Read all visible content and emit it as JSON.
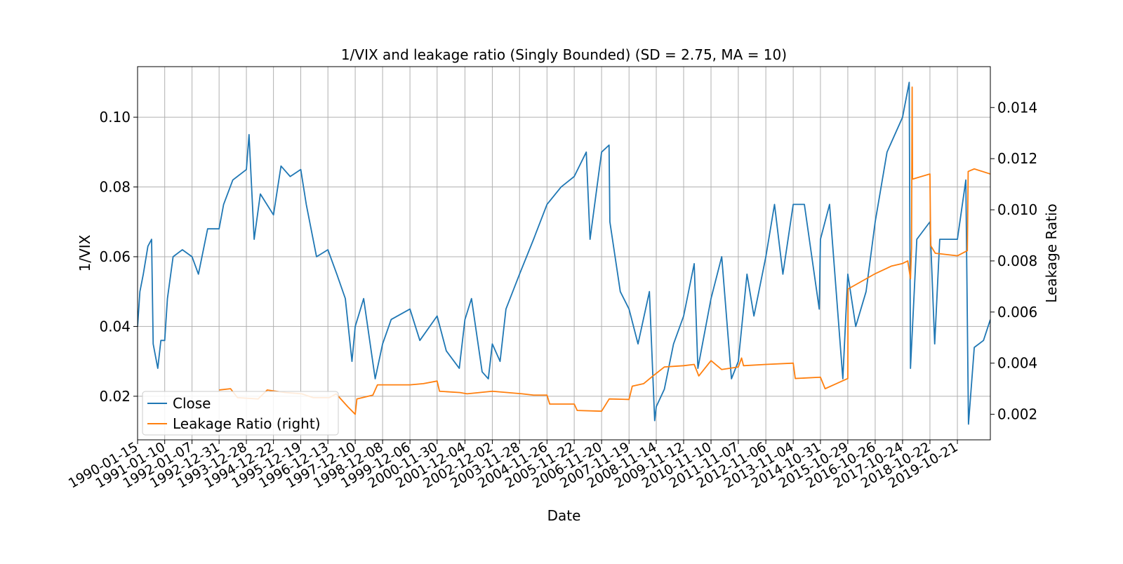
{
  "chart_data": {
    "type": "line",
    "title": "1/VIX and leakage ratio (Singly Bounded) (SD = 2.75, MA = 10)",
    "xlabel": "Date",
    "ylabel": "1/VIX",
    "ylabel_right": "Leakage Ratio",
    "grid": true,
    "legend_position": "lower-left",
    "xlim": [
      "1990-01-15",
      "2020-12-31"
    ],
    "ylim": [
      0.0075,
      0.1145
    ],
    "ylim_right": [
      0.001,
      0.0156
    ],
    "x_ticks": [
      "1990-01-15",
      "1991-01-10",
      "1992-01-07",
      "1992-12-31",
      "1993-12-28",
      "1994-12-22",
      "1995-12-19",
      "1996-12-13",
      "1997-12-10",
      "1998-12-08",
      "1999-12-06",
      "2000-11-30",
      "2001-12-04",
      "2002-12-02",
      "2003-11-28",
      "2004-11-26",
      "2005-11-22",
      "2006-11-20",
      "2007-11-19",
      "2008-11-14",
      "2009-11-12",
      "2010-11-10",
      "2011-11-07",
      "2012-11-06",
      "2013-11-04",
      "2014-10-31",
      "2015-10-29",
      "2016-10-26",
      "2017-10-24",
      "2018-10-22",
      "2019-10-21"
    ],
    "y_ticks": [
      "0.02",
      "0.04",
      "0.06",
      "0.08",
      "0.10"
    ],
    "y_ticks_right": [
      "0.002",
      "0.004",
      "0.006",
      "0.008",
      "0.010",
      "0.012",
      "0.014"
    ],
    "colors": {
      "close": "#1f77b4",
      "leakage": "#ff7f0e",
      "grid": "#b0b0b0"
    },
    "series": [
      {
        "name": "Close",
        "axis": "left",
        "points": [
          [
            "1990-01-15",
            0.04
          ],
          [
            "1990-02-15",
            0.05
          ],
          [
            "1990-04-01",
            0.055
          ],
          [
            "1990-06-01",
            0.063
          ],
          [
            "1990-07-20",
            0.065
          ],
          [
            "1990-08-10",
            0.035
          ],
          [
            "1990-10-10",
            0.028
          ],
          [
            "1990-11-20",
            0.036
          ],
          [
            "1991-01-10",
            0.036
          ],
          [
            "1991-02-15",
            0.048
          ],
          [
            "1991-05-01",
            0.06
          ],
          [
            "1991-09-01",
            0.062
          ],
          [
            "1992-01-07",
            0.06
          ],
          [
            "1992-04-01",
            0.055
          ],
          [
            "1992-08-01",
            0.068
          ],
          [
            "1992-12-31",
            0.068
          ],
          [
            "1993-03-01",
            0.075
          ],
          [
            "1993-07-01",
            0.082
          ],
          [
            "1993-12-28",
            0.085
          ],
          [
            "1994-02-01",
            0.095
          ],
          [
            "1994-04-10",
            0.065
          ],
          [
            "1994-07-01",
            0.078
          ],
          [
            "1994-12-22",
            0.072
          ],
          [
            "1995-04-01",
            0.086
          ],
          [
            "1995-08-01",
            0.083
          ],
          [
            "1995-12-19",
            0.085
          ],
          [
            "1996-03-01",
            0.075
          ],
          [
            "1996-07-15",
            0.06
          ],
          [
            "1996-12-13",
            0.062
          ],
          [
            "1997-04-10",
            0.055
          ],
          [
            "1997-08-01",
            0.048
          ],
          [
            "1997-10-28",
            0.03
          ],
          [
            "1997-12-10",
            0.04
          ],
          [
            "1998-04-01",
            0.048
          ],
          [
            "1998-09-01",
            0.025
          ],
          [
            "1998-12-08",
            0.035
          ],
          [
            "1999-04-01",
            0.042
          ],
          [
            "1999-12-06",
            0.045
          ],
          [
            "2000-04-15",
            0.036
          ],
          [
            "2000-11-30",
            0.043
          ],
          [
            "2001-04-01",
            0.033
          ],
          [
            "2001-09-20",
            0.028
          ],
          [
            "2001-12-04",
            0.042
          ],
          [
            "2002-03-01",
            0.048
          ],
          [
            "2002-07-20",
            0.027
          ],
          [
            "2002-10-10",
            0.025
          ],
          [
            "2002-12-02",
            0.035
          ],
          [
            "2003-03-15",
            0.03
          ],
          [
            "2003-06-01",
            0.045
          ],
          [
            "2003-11-28",
            0.055
          ],
          [
            "2004-06-01",
            0.065
          ],
          [
            "2004-11-26",
            0.075
          ],
          [
            "2005-06-01",
            0.08
          ],
          [
            "2005-11-22",
            0.083
          ],
          [
            "2006-05-01",
            0.09
          ],
          [
            "2006-06-20",
            0.065
          ],
          [
            "2006-11-20",
            0.09
          ],
          [
            "2007-02-27",
            0.092
          ],
          [
            "2007-03-10",
            0.07
          ],
          [
            "2007-07-26",
            0.05
          ],
          [
            "2007-11-19",
            0.045
          ],
          [
            "2008-03-17",
            0.035
          ],
          [
            "2008-08-15",
            0.05
          ],
          [
            "2008-10-24",
            0.013
          ],
          [
            "2008-11-14",
            0.017
          ],
          [
            "2009-03-01",
            0.022
          ],
          [
            "2009-07-01",
            0.035
          ],
          [
            "2009-11-12",
            0.043
          ],
          [
            "2010-04-01",
            0.058
          ],
          [
            "2010-05-20",
            0.028
          ],
          [
            "2010-11-10",
            0.048
          ],
          [
            "2011-04-01",
            0.06
          ],
          [
            "2011-08-08",
            0.025
          ],
          [
            "2011-11-07",
            0.03
          ],
          [
            "2012-03-01",
            0.055
          ],
          [
            "2012-06-01",
            0.043
          ],
          [
            "2012-11-06",
            0.06
          ],
          [
            "2013-03-01",
            0.075
          ],
          [
            "2013-06-20",
            0.055
          ],
          [
            "2013-11-04",
            0.075
          ],
          [
            "2014-04-01",
            0.075
          ],
          [
            "2014-10-15",
            0.045
          ],
          [
            "2014-10-31",
            0.065
          ],
          [
            "2015-03-01",
            0.075
          ],
          [
            "2015-08-24",
            0.025
          ],
          [
            "2015-10-29",
            0.055
          ],
          [
            "2016-02-11",
            0.04
          ],
          [
            "2016-06-27",
            0.05
          ],
          [
            "2016-10-26",
            0.07
          ],
          [
            "2017-04-01",
            0.09
          ],
          [
            "2017-10-24",
            0.1
          ],
          [
            "2018-01-20",
            0.11
          ],
          [
            "2018-02-06",
            0.028
          ],
          [
            "2018-05-01",
            0.065
          ],
          [
            "2018-10-22",
            0.07
          ],
          [
            "2018-12-24",
            0.035
          ],
          [
            "2019-03-01",
            0.065
          ],
          [
            "2019-10-21",
            0.065
          ],
          [
            "2020-02-10",
            0.082
          ],
          [
            "2020-03-16",
            0.012
          ],
          [
            "2020-06-01",
            0.034
          ],
          [
            "2020-10-01",
            0.036
          ],
          [
            "2020-12-31",
            0.042
          ]
        ]
      },
      {
        "name": "Leakage Ratio (right)",
        "axis": "right",
        "points": [
          [
            "1993-01-01",
            0.00295
          ],
          [
            "1993-06-01",
            0.003
          ],
          [
            "1993-09-01",
            0.00265
          ],
          [
            "1994-06-01",
            0.0026
          ],
          [
            "1994-10-01",
            0.00295
          ],
          [
            "1995-06-01",
            0.00285
          ],
          [
            "1996-01-01",
            0.0028
          ],
          [
            "1996-06-01",
            0.00265
          ],
          [
            "1997-01-01",
            0.00265
          ],
          [
            "1997-04-01",
            0.0028
          ],
          [
            "1997-09-01",
            0.0023
          ],
          [
            "1997-12-10",
            0.002
          ],
          [
            "1998-01-01",
            0.0026
          ],
          [
            "1998-08-01",
            0.00275
          ],
          [
            "1998-10-01",
            0.00315
          ],
          [
            "1999-12-06",
            0.00315
          ],
          [
            "2000-06-01",
            0.0032
          ],
          [
            "2000-11-30",
            0.0033
          ],
          [
            "2001-01-01",
            0.0029
          ],
          [
            "2001-10-01",
            0.00285
          ],
          [
            "2002-01-01",
            0.0028
          ],
          [
            "2002-12-02",
            0.0029
          ],
          [
            "2004-01-01",
            0.0028
          ],
          [
            "2004-06-01",
            0.00275
          ],
          [
            "2004-11-26",
            0.00275
          ],
          [
            "2005-01-01",
            0.0024
          ],
          [
            "2005-11-22",
            0.0024
          ],
          [
            "2006-01-01",
            0.00215
          ],
          [
            "2006-11-20",
            0.00212
          ],
          [
            "2007-03-01",
            0.0026
          ],
          [
            "2007-11-19",
            0.00258
          ],
          [
            "2008-01-01",
            0.0031
          ],
          [
            "2008-06-01",
            0.0032
          ],
          [
            "2008-10-01",
            0.0035
          ],
          [
            "2008-11-14",
            0.0036
          ],
          [
            "2009-03-01",
            0.00385
          ],
          [
            "2009-11-12",
            0.0039
          ],
          [
            "2010-04-01",
            0.00395
          ],
          [
            "2010-06-01",
            0.0035
          ],
          [
            "2010-11-10",
            0.0041
          ],
          [
            "2011-04-01",
            0.00375
          ],
          [
            "2011-11-07",
            0.00385
          ],
          [
            "2011-12-20",
            0.0042
          ],
          [
            "2012-01-15",
            0.0039
          ],
          [
            "2012-11-06",
            0.00395
          ],
          [
            "2013-11-04",
            0.004
          ],
          [
            "2013-12-01",
            0.0034
          ],
          [
            "2014-10-31",
            0.00345
          ],
          [
            "2015-01-01",
            0.003
          ],
          [
            "2015-06-01",
            0.0032
          ],
          [
            "2015-10-29",
            0.0034
          ],
          [
            "2015-11-01",
            0.0069
          ],
          [
            "2016-10-26",
            0.0075
          ],
          [
            "2017-06-01",
            0.0078
          ],
          [
            "2017-10-24",
            0.0079
          ],
          [
            "2018-01-01",
            0.008
          ],
          [
            "2018-02-06",
            0.0073
          ],
          [
            "2018-02-20",
            0.0085
          ],
          [
            "2018-02-28",
            0.0148
          ],
          [
            "2018-03-05",
            0.0112
          ],
          [
            "2018-10-22",
            0.0114
          ],
          [
            "2018-11-01",
            0.0086
          ],
          [
            "2019-01-01",
            0.0083
          ],
          [
            "2019-10-21",
            0.0082
          ],
          [
            "2020-03-01",
            0.0084
          ],
          [
            "2020-03-12",
            0.0115
          ],
          [
            "2020-06-01",
            0.0116
          ],
          [
            "2020-12-31",
            0.0114
          ]
        ]
      }
    ]
  }
}
